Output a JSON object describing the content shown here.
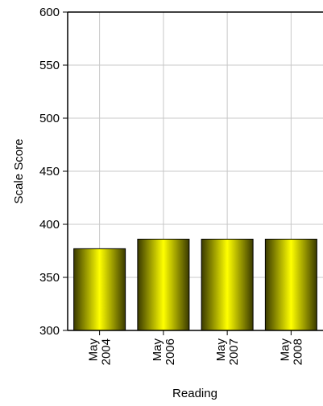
{
  "chart_data": {
    "type": "bar",
    "title": "",
    "xlabel": "Reading",
    "ylabel": "Scale Score",
    "categories": [
      [
        "May",
        "2004"
      ],
      [
        "May",
        "2006"
      ],
      [
        "May",
        "2007"
      ],
      [
        "May",
        "2008"
      ]
    ],
    "values": [
      377,
      386,
      386,
      386
    ],
    "ylim": [
      300,
      600
    ],
    "yticks": [
      "300",
      "350",
      "400",
      "450",
      "500",
      "550",
      "600"
    ],
    "grid": true,
    "legend": "none",
    "colors": {
      "bar_center": "#ffff00",
      "bar_edge": "#3a3a00",
      "grid": "#c8c8c8",
      "axis": "#000000"
    }
  }
}
